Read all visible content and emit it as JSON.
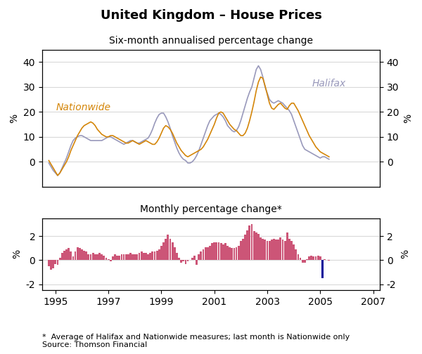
{
  "chart_data": [
    {
      "type": "line",
      "title": "United Kingdom – House Prices",
      "subtitle": "Six-month annualised percentage change",
      "x": [
        1994.75,
        1994.833333,
        1994.916666,
        1994.999999,
        1995.083332,
        1995.166665,
        1995.249998,
        1995.333331,
        1995.416664,
        1995.499997,
        1995.58333,
        1995.666663,
        1995.749996,
        1995.833329,
        1995.916662,
        1995.999995,
        1996.083328,
        1996.166661,
        1996.249994,
        1996.333327,
        1996.41666,
        1996.499993,
        1996.583326,
        1996.666659,
        1996.749992,
        1996.833325,
        1996.916658,
        1996.999991,
        1997.083324,
        1997.166657,
        1997.24999,
        1997.333323,
        1997.416656,
        1997.499989,
        1997.583322,
        1997.666655,
        1997.749988,
        1997.833321,
        1997.916654,
        1997.999987,
        1998.08332,
        1998.166653,
        1998.249986,
        1998.333319,
        1998.416652,
        1998.499985,
        1998.583318,
        1998.666651,
        1998.749984,
        1998.833317,
        1998.91665,
        1998.999983,
        1999.083316,
        1999.166649,
        1999.249982,
        1999.333315,
        1999.416648,
        1999.499981,
        1999.583314,
        1999.666647,
        1999.74998,
        1999.833313,
        1999.916646,
        1999.999979,
        2000.083312,
        2000.166645,
        2000.249978,
        2000.333311,
        2000.416644,
        2000.499977,
        2000.58331,
        2000.666643,
        2000.749976,
        2000.833309,
        2000.916642,
        2000.999975,
        2001.083308,
        2001.166641,
        2001.249974,
        2001.333307,
        2001.41664,
        2001.499973,
        2001.583306,
        2001.666639,
        2001.749972,
        2001.833305,
        2001.916638,
        2001.999971,
        2002.083304,
        2002.166637,
        2002.24997,
        2002.333303,
        2002.416636,
        2002.499969,
        2002.583302,
        2002.666635,
        2002.749968,
        2002.833301,
        2002.916634,
        2002.999967,
        2003.0833,
        2003.166633,
        2003.249966,
        2003.333299,
        2003.416632,
        2003.499965,
        2003.583298,
        2003.666631,
        2003.749964,
        2003.833297,
        2003.91663,
        2003.999963,
        2004.083296,
        2004.166629,
        2004.249962,
        2004.333295,
        2004.416628,
        2004.499961,
        2004.583294,
        2004.666627,
        2004.74996,
        2004.833293,
        2004.916626,
        2004.999959,
        2005.083292,
        2005.166625,
        2005.249958,
        2005.333291
      ],
      "series": [
        {
          "name": "Nationwide",
          "color": "#D4860A",
          "values": [
            0.5,
            -1.0,
            -2.5,
            -4.0,
            -5.5,
            -4.5,
            -3.0,
            -1.5,
            0.0,
            2.0,
            4.5,
            6.5,
            8.5,
            10.5,
            12.0,
            13.5,
            14.5,
            15.0,
            15.5,
            16.0,
            15.5,
            14.5,
            13.0,
            12.0,
            11.0,
            10.5,
            10.0,
            10.0,
            10.5,
            10.5,
            10.0,
            9.5,
            9.0,
            8.5,
            8.0,
            7.5,
            7.5,
            8.0,
            8.5,
            8.0,
            7.5,
            7.0,
            7.5,
            8.0,
            8.5,
            8.0,
            7.5,
            7.0,
            7.0,
            8.0,
            9.5,
            11.5,
            13.5,
            14.5,
            14.0,
            13.0,
            11.5,
            9.5,
            7.5,
            6.0,
            4.5,
            3.5,
            2.5,
            2.0,
            2.5,
            3.0,
            3.5,
            4.0,
            4.5,
            5.0,
            6.0,
            7.5,
            9.0,
            11.0,
            13.0,
            15.0,
            17.5,
            19.5,
            20.0,
            19.5,
            18.0,
            16.5,
            15.0,
            14.0,
            13.0,
            12.5,
            11.5,
            10.5,
            10.5,
            11.5,
            13.5,
            16.5,
            20.0,
            24.0,
            28.5,
            32.0,
            34.0,
            33.5,
            30.5,
            27.0,
            23.5,
            21.5,
            21.0,
            22.0,
            23.0,
            23.5,
            22.5,
            21.5,
            21.0,
            22.5,
            23.5,
            23.5,
            22.0,
            20.5,
            18.5,
            16.5,
            14.5,
            12.5,
            10.5,
            9.0,
            7.5,
            6.0,
            5.0,
            4.0,
            3.5,
            3.0,
            2.5,
            2.0
          ]
        },
        {
          "name": "Halifax",
          "color": "#9999BB",
          "values": [
            -0.5,
            -2.0,
            -3.5,
            -4.5,
            -5.5,
            -4.5,
            -2.5,
            -0.5,
            1.5,
            4.0,
            6.5,
            8.5,
            9.5,
            10.0,
            10.5,
            10.5,
            10.0,
            9.5,
            9.0,
            8.5,
            8.5,
            8.5,
            8.5,
            8.5,
            8.5,
            9.0,
            9.5,
            10.0,
            10.0,
            9.5,
            9.0,
            8.5,
            8.0,
            7.5,
            7.0,
            7.5,
            8.0,
            8.5,
            8.5,
            8.0,
            7.5,
            7.5,
            8.0,
            8.5,
            9.0,
            9.5,
            11.0,
            13.0,
            15.5,
            17.5,
            19.0,
            19.5,
            19.5,
            18.0,
            16.0,
            13.5,
            10.5,
            8.0,
            5.5,
            3.5,
            2.0,
            1.0,
            0.5,
            -0.5,
            -0.5,
            0.0,
            1.0,
            2.5,
            4.5,
            7.0,
            9.5,
            12.0,
            14.5,
            16.5,
            17.5,
            18.5,
            19.0,
            19.5,
            19.0,
            18.0,
            16.5,
            14.5,
            13.5,
            12.5,
            12.0,
            12.5,
            14.0,
            16.5,
            19.5,
            22.5,
            25.5,
            28.0,
            30.0,
            33.5,
            37.0,
            38.5,
            37.0,
            34.0,
            30.0,
            27.5,
            25.0,
            24.0,
            23.5,
            24.0,
            24.5,
            24.0,
            23.5,
            22.5,
            21.5,
            20.5,
            19.0,
            16.5,
            14.0,
            11.5,
            9.0,
            6.5,
            5.0,
            4.5,
            4.0,
            3.5,
            3.0,
            2.5,
            2.0,
            1.5,
            2.0,
            2.0,
            1.5,
            1.0
          ]
        }
      ],
      "xlim": [
        1994.5,
        2007.25
      ],
      "xticks": [
        1995,
        1997,
        1999,
        2001,
        2003,
        2005,
        2007
      ],
      "tick_labels": "y",
      "ylim": [
        -10,
        45
      ],
      "yticks": [
        0,
        10,
        20,
        30,
        40
      ],
      "y2lim": [
        -10,
        45
      ],
      "y2ticks": [
        0,
        10,
        20,
        30,
        40
      ],
      "ylabel": "%",
      "y2label": "%",
      "grid": true
    },
    {
      "type": "bar",
      "subtitle": "Monthly percentage change*",
      "note": "*  Average of Halifax and Nationwide measures; last month is Nationwide only\nSource: Thomson Financial",
      "x": [
        1994.75,
        1994.833333,
        1994.916666,
        1994.999999,
        1995.083332,
        1995.166665,
        1995.249998,
        1995.333331,
        1995.416664,
        1995.499997,
        1995.58333,
        1995.666663,
        1995.749996,
        1995.833329,
        1995.916662,
        1995.999995,
        1996.083328,
        1996.166661,
        1996.249994,
        1996.333327,
        1996.41666,
        1996.499993,
        1996.583326,
        1996.666659,
        1996.749992,
        1996.833325,
        1996.916658,
        1996.999991,
        1997.083324,
        1997.166657,
        1997.24999,
        1997.333323,
        1997.416656,
        1997.499989,
        1997.583322,
        1997.666655,
        1997.749988,
        1997.833321,
        1997.916654,
        1997.999987,
        1998.08332,
        1998.166653,
        1998.249986,
        1998.333319,
        1998.416652,
        1998.499985,
        1998.583318,
        1998.666651,
        1998.749984,
        1998.833317,
        1998.91665,
        1998.999983,
        1999.083316,
        1999.166649,
        1999.249982,
        1999.333315,
        1999.416648,
        1999.499981,
        1999.583314,
        1999.666647,
        1999.74998,
        1999.833313,
        1999.916646,
        1999.999979,
        2000.083312,
        2000.166645,
        2000.249978,
        2000.333311,
        2000.416644,
        2000.499977,
        2000.58331,
        2000.666643,
        2000.749976,
        2000.833309,
        2000.916642,
        2000.999975,
        2001.083308,
        2001.166641,
        2001.249974,
        2001.333307,
        2001.41664,
        2001.499973,
        2001.583306,
        2001.666639,
        2001.749972,
        2001.833305,
        2001.916638,
        2001.999971,
        2002.083304,
        2002.166637,
        2002.24997,
        2002.333303,
        2002.416636,
        2002.499969,
        2002.583302,
        2002.666635,
        2002.749968,
        2002.833301,
        2002.916634,
        2002.999967,
        2003.0833,
        2003.166633,
        2003.249966,
        2003.333299,
        2003.416632,
        2003.499965,
        2003.583298,
        2003.666631,
        2003.749964,
        2003.833297,
        2003.91663,
        2003.999963,
        2004.083296,
        2004.166629,
        2004.249962,
        2004.333295,
        2004.416628,
        2004.499961,
        2004.583294,
        2004.666627,
        2004.74996,
        2004.833293,
        2004.916626,
        2004.999959,
        2005.083292,
        2005.166625,
        2005.249958,
        2005.333291
      ],
      "values": [
        -0.5,
        -0.8,
        -0.7,
        -0.3,
        -0.4,
        0.2,
        0.6,
        0.8,
        0.9,
        1.0,
        0.7,
        0.3,
        0.7,
        1.1,
        1.0,
        0.9,
        0.8,
        0.7,
        0.5,
        0.5,
        0.6,
        0.5,
        0.5,
        0.6,
        0.5,
        0.4,
        0.2,
        0.1,
        -0.1,
        0.3,
        0.5,
        0.4,
        0.4,
        0.5,
        0.5,
        0.5,
        0.5,
        0.6,
        0.5,
        0.5,
        0.5,
        0.6,
        0.7,
        0.6,
        0.6,
        0.5,
        0.6,
        0.7,
        0.7,
        0.8,
        0.9,
        1.2,
        1.5,
        1.8,
        2.1,
        1.8,
        1.5,
        1.1,
        0.6,
        0.2,
        -0.2,
        -0.1,
        -0.3,
        -0.1,
        0.0,
        0.2,
        0.4,
        -0.4,
        0.5,
        0.7,
        0.9,
        1.1,
        1.1,
        1.2,
        1.4,
        1.5,
        1.5,
        1.5,
        1.4,
        1.3,
        1.4,
        1.2,
        1.1,
        1.0,
        1.0,
        1.1,
        1.2,
        1.6,
        1.8,
        2.1,
        2.5,
        2.9,
        3.0,
        2.4,
        2.3,
        2.2,
        1.9,
        1.8,
        1.7,
        1.6,
        1.6,
        1.7,
        1.8,
        1.7,
        1.7,
        1.9,
        1.7,
        1.6,
        2.3,
        1.8,
        1.6,
        1.3,
        0.9,
        0.5,
        0.2,
        -0.2,
        -0.2,
        0.1,
        0.3,
        0.4,
        0.3,
        0.3,
        0.4,
        0.3,
        -1.5,
        0.1,
        0.05,
        -0.05
      ],
      "colors": [
        "#CC5577",
        "#CC5577",
        "#CC5577",
        "#CC5577",
        "#CC5577",
        "#CC5577",
        "#CC5577",
        "#CC5577",
        "#CC5577",
        "#CC5577",
        "#CC5577",
        "#CC5577",
        "#CC5577",
        "#CC5577",
        "#CC5577",
        "#CC5577",
        "#CC5577",
        "#CC5577",
        "#CC5577",
        "#CC5577",
        "#CC5577",
        "#CC5577",
        "#CC5577",
        "#CC5577",
        "#CC5577",
        "#CC5577",
        "#CC5577",
        "#CC5577",
        "#CC5577",
        "#CC5577",
        "#CC5577",
        "#CC5577",
        "#CC5577",
        "#CC5577",
        "#CC5577",
        "#CC5577",
        "#CC5577",
        "#CC5577",
        "#CC5577",
        "#CC5577",
        "#CC5577",
        "#CC5577",
        "#CC5577",
        "#CC5577",
        "#CC5577",
        "#CC5577",
        "#CC5577",
        "#CC5577",
        "#CC5577",
        "#CC5577",
        "#CC5577",
        "#CC5577",
        "#CC5577",
        "#CC5577",
        "#CC5577",
        "#CC5577",
        "#CC5577",
        "#CC5577",
        "#CC5577",
        "#CC5577",
        "#CC5577",
        "#CC5577",
        "#CC5577",
        "#CC5577",
        "#CC5577",
        "#CC5577",
        "#CC5577",
        "#CC5577",
        "#CC5577",
        "#CC5577",
        "#CC5577",
        "#CC5577",
        "#CC5577",
        "#CC5577",
        "#CC5577",
        "#CC5577",
        "#CC5577",
        "#CC5577",
        "#CC5577",
        "#CC5577",
        "#CC5577",
        "#CC5577",
        "#CC5577",
        "#CC5577",
        "#CC5577",
        "#CC5577",
        "#CC5577",
        "#CC5577",
        "#CC5577",
        "#CC5577",
        "#CC5577",
        "#CC5577",
        "#CC5577",
        "#CC5577",
        "#CC5577",
        "#CC5577",
        "#CC5577",
        "#CC5577",
        "#CC5577",
        "#CC5577",
        "#CC5577",
        "#CC5577",
        "#CC5577",
        "#CC5577",
        "#CC5577",
        "#CC5577",
        "#CC5577",
        "#CC5577",
        "#CC5577",
        "#CC5577",
        "#CC5577",
        "#CC5577",
        "#CC5577",
        "#CC5577",
        "#CC5577",
        "#CC5577",
        "#CC5577",
        "#CC5577",
        "#CC5577",
        "#CC5577",
        "#CC5577",
        "#CC5577",
        "#CC5577",
        "#CC5577",
        "#000099",
        "#CC5577",
        "#CC5577",
        "#CC5577"
      ],
      "xlim": [
        1994.5,
        2007.25
      ],
      "xticks": [
        1995,
        1997,
        1999,
        2001,
        2003,
        2005,
        2007
      ],
      "ylim": [
        -2.5,
        3.5
      ],
      "yticks": [
        -2,
        0,
        2
      ],
      "y2lim": [
        -2.5,
        3.5
      ],
      "y2ticks": [
        -2,
        0,
        2
      ],
      "ylabel": "%",
      "y2label": "%",
      "grid": true
    }
  ]
}
